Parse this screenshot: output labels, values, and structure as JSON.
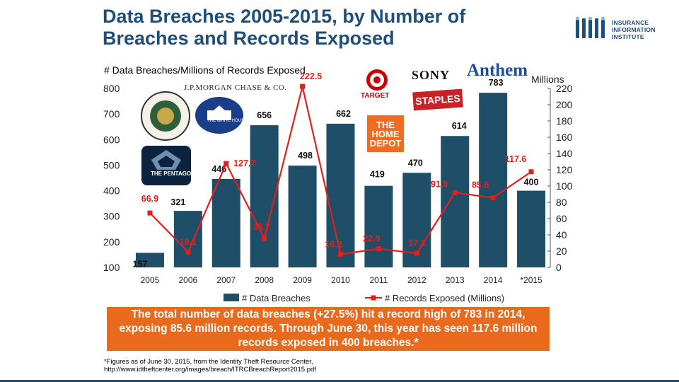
{
  "slide": {
    "title_line1": "Data Breaches 2005-2015, by Number of",
    "title_line2": "Breaches and Records Exposed",
    "logo": {
      "line1": "INSURANCE",
      "line2": "INFORMATION",
      "line3": "INSTITUTE"
    },
    "subtitle": "# Data Breaches/Millions of Records Exposed",
    "right_axis_unit": "Millions",
    "brands": {
      "jpmorgan": "J.P.MORGAN CHASE & CO.",
      "sony": "SONY",
      "anthem": "Anthem",
      "target": "TARGET",
      "staples": "STAPLES",
      "homedepot": "THE HOME DEPOT",
      "pentagon": "THE PENTAGON",
      "whitehouse": "THE WHITE HOUSE"
    },
    "callout": "The total number of data breaches (+27.5%) hit a record high of 783 in 2014, exposing 85.6 million records. Through June 30, this year has seen 117.6 million records exposed in 400 breaches.*",
    "footnote_line1": "*Figures as of June 30, 2015, from the Identity Theft Resource Center,",
    "footnote_line2": "http://www.idtheftcenter.org/images/breach/ITRCBreachReport2015.pdf"
  },
  "colors": {
    "bar": "#1f4e69",
    "line": "#e0201b",
    "label_red": "#e0201b",
    "title": "#1f4e79",
    "callout": "#ea6a1d"
  },
  "chart_data": {
    "type": "bar",
    "categories": [
      "2005",
      "2006",
      "2007",
      "2008",
      "2009",
      "2010",
      "2011",
      "2012",
      "2013",
      "2014",
      "*2015"
    ],
    "series": [
      {
        "name": "# Data Breaches",
        "type": "bar",
        "axis": "left",
        "values": [
          157,
          321,
          446,
          656,
          498,
          662,
          419,
          470,
          614,
          783,
          400
        ]
      },
      {
        "name": "# Records Exposed (Millions)",
        "type": "line",
        "axis": "right",
        "values": [
          66.9,
          19.1,
          127.7,
          35.7,
          222.5,
          16.2,
          22.9,
          17.3,
          91.9,
          85.6,
          117.6
        ],
        "labels": [
          "66.9",
          "19.1",
          "127.7",
          "35.7",
          "222.5",
          "16.2",
          "22.9",
          "17.3",
          "91.9",
          "85.6",
          "117.6"
        ]
      }
    ],
    "ylim_left": [
      100,
      800
    ],
    "yticks_left": [
      100,
      200,
      300,
      400,
      500,
      600,
      700,
      800
    ],
    "ylim_right": [
      0,
      220
    ],
    "yticks_right": [
      0,
      20,
      40,
      60,
      80,
      100,
      120,
      140,
      160,
      180,
      200,
      220
    ],
    "legend": [
      "# Data Breaches",
      "# Records Exposed (Millions)"
    ]
  }
}
